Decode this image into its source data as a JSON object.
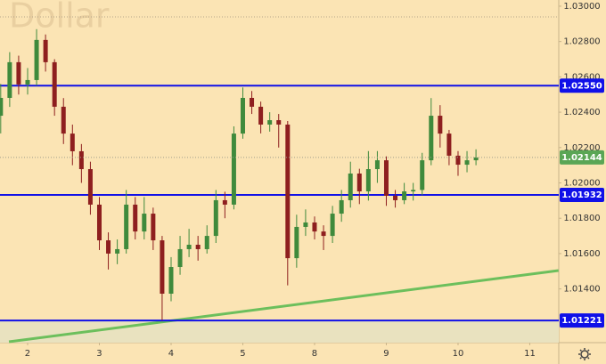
{
  "chart_data": {
    "type": "candlestick",
    "title": "Dollar",
    "x": [
      -0.375,
      -0.25,
      -0.125,
      0,
      0.125,
      0.25,
      0.375,
      0.5,
      0.625,
      0.75,
      0.875,
      1,
      1.125,
      1.25,
      1.375,
      1.5,
      1.625,
      1.75,
      1.875,
      2,
      2.125,
      2.25,
      2.375,
      2.5,
      2.625,
      2.75,
      2.875,
      3,
      3.125,
      3.25,
      3.375,
      3.5,
      3.625,
      3.75,
      3.875,
      4,
      4.125,
      4.25,
      4.375,
      4.5,
      4.625,
      4.75,
      4.875,
      5,
      5.125,
      5.25,
      5.375,
      5.5,
      5.625,
      5.75,
      5.875,
      6,
      6.125,
      6.25
    ],
    "open": [
      1.0238,
      1.02481,
      1.02683,
      1.02557,
      1.02582,
      1.02809,
      1.02683,
      1.02431,
      1.02279,
      1.02179,
      1.02078,
      1.01877,
      1.01675,
      1.016,
      1.01625,
      1.01877,
      1.01725,
      1.01826,
      1.01675,
      1.01373,
      1.01524,
      1.01625,
      1.0165,
      1.01625,
      1.017,
      1.01902,
      1.01877,
      1.02279,
      1.02481,
      1.02431,
      1.0233,
      1.02355,
      1.0233,
      1.01574,
      1.01751,
      1.01776,
      1.01725,
      1.017,
      1.01826,
      1.01902,
      1.02053,
      1.01952,
      1.02078,
      1.02128,
      1.01927,
      1.01902,
      1.01952,
      1.0196,
      1.02128,
      1.0238,
      1.02279,
      1.02154,
      1.02103,
      1.02128
    ],
    "high": [
      1.0256,
      1.0274,
      1.0272,
      1.0265,
      1.0287,
      1.0284,
      1.027,
      1.0248,
      1.0233,
      1.0222,
      1.0212,
      1.0192,
      1.0172,
      1.0168,
      1.0196,
      1.0192,
      1.0192,
      1.0186,
      1.017,
      1.0158,
      1.017,
      1.0174,
      1.017,
      1.0176,
      1.0196,
      1.0195,
      1.0232,
      1.0254,
      1.0252,
      1.0246,
      1.024,
      1.0239,
      1.0235,
      1.0182,
      1.0185,
      1.0181,
      1.0176,
      1.0187,
      1.0196,
      1.0212,
      1.0208,
      1.0218,
      1.0218,
      1.0215,
      1.0196,
      1.02,
      1.02,
      1.0217,
      1.0248,
      1.0244,
      1.023,
      1.0218,
      1.0218,
      1.0219
    ],
    "low": [
      1.0228,
      1.0243,
      1.025,
      1.025,
      1.0255,
      1.0263,
      1.0238,
      1.0222,
      1.021,
      1.02,
      1.0182,
      1.0162,
      1.0151,
      1.0154,
      1.016,
      1.0168,
      1.0168,
      1.0162,
      1.01221,
      1.0133,
      1.0148,
      1.0158,
      1.0156,
      1.016,
      1.0166,
      1.018,
      1.0185,
      1.0225,
      1.0239,
      1.0228,
      1.0229,
      1.022,
      1.0142,
      1.0152,
      1.017,
      1.0168,
      1.0162,
      1.0166,
      1.0178,
      1.0186,
      1.0188,
      1.019,
      1.02,
      1.0187,
      1.0186,
      1.0188,
      1.019,
      1.0193,
      1.021,
      1.022,
      1.021,
      1.0204,
      1.0206,
      1.021
    ],
    "close": [
      1.02481,
      1.02683,
      1.02557,
      1.02582,
      1.02809,
      1.02683,
      1.02431,
      1.02279,
      1.02179,
      1.02078,
      1.01877,
      1.01675,
      1.016,
      1.01625,
      1.01877,
      1.01725,
      1.01826,
      1.01675,
      1.01373,
      1.01524,
      1.01625,
      1.0165,
      1.01625,
      1.017,
      1.01902,
      1.01877,
      1.02279,
      1.02481,
      1.02431,
      1.0233,
      1.02355,
      1.0233,
      1.01574,
      1.01751,
      1.01776,
      1.01725,
      1.017,
      1.01826,
      1.01902,
      1.02053,
      1.01952,
      1.02078,
      1.02128,
      1.01927,
      1.01902,
      1.01952,
      1.0196,
      1.02128,
      1.0238,
      1.02279,
      1.02154,
      1.02103,
      1.02128,
      1.02144
    ],
    "up_color": "#3f8a3c",
    "down_color": "#8e1f1f",
    "xlim": [
      -0.385,
      7.404
    ],
    "xticks": [
      {
        "value": 0,
        "label": "2"
      },
      {
        "value": 1,
        "label": "3"
      },
      {
        "value": 2,
        "label": "4"
      },
      {
        "value": 3,
        "label": "5"
      },
      {
        "value": 4,
        "label": "8"
      },
      {
        "value": 5,
        "label": "9"
      },
      {
        "value": 6,
        "label": "10"
      },
      {
        "value": 7,
        "label": "11"
      }
    ],
    "ylim": [
      1.01096,
      1.03035
    ],
    "yticks": [
      {
        "value": 1.03,
        "label": "1.03000"
      },
      {
        "value": 1.028,
        "label": "1.02800"
      },
      {
        "value": 1.026,
        "label": "1.02600"
      },
      {
        "value": 1.024,
        "label": "1.02400"
      },
      {
        "value": 1.022,
        "label": "1.02200"
      },
      {
        "value": 1.02,
        "label": "1.02000"
      },
      {
        "value": 1.018,
        "label": "1.01800"
      },
      {
        "value": 1.016,
        "label": "1.01600"
      },
      {
        "value": 1.014,
        "label": "1.01400"
      }
    ],
    "grid": false,
    "levels": [
      {
        "value": 1.0255,
        "label": "1.02550"
      },
      {
        "value": 1.01932,
        "label": "1.01932"
      },
      {
        "value": 1.01221,
        "label": "1.01221"
      }
    ],
    "level_color": "#1010e8",
    "trendline": {
      "x": [
        -0.26,
        7.4
      ],
      "y": [
        1.01101,
        1.01504
      ],
      "color": "#6cbf5c"
    },
    "price_tag_color": "#5aa655"
  }
}
